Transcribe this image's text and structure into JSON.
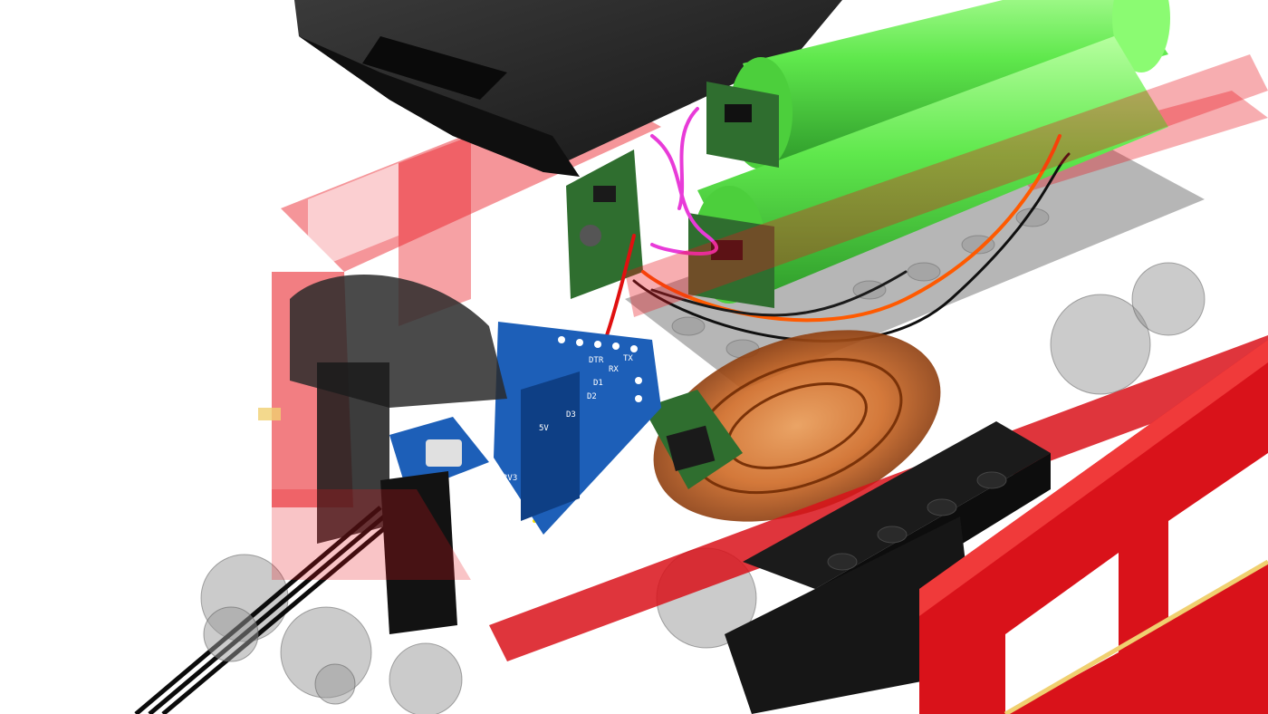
{
  "pcb_labels": [
    "DTR",
    "RX",
    "TX",
    "D1",
    "D2",
    "D3",
    "5V",
    "3V3"
  ],
  "colors": {
    "background": "#ffffff",
    "translucent_red": "#e8141c",
    "solid_red": "#d9121a",
    "battery_green": "#6af05a",
    "pcb_green": "#2f6e2f",
    "pcb_blue": "#1d5fb8",
    "copper_coil": "#c9611f",
    "black_brick": "#1b1b1b",
    "wire_orange": "#ff5a00",
    "wire_magenta": "#e83bd8",
    "wire_red": "#e01010",
    "wire_yellow": "#ffe600"
  },
  "objects": [
    "roof-panel",
    "battery-cells",
    "charger-boards",
    "wemos-d1-mini",
    "wireless-charging-coil",
    "usb-connector",
    "ribbon-cable",
    "red-chassis-frame",
    "red-side-wall",
    "wheels",
    "black-brick-beam"
  ]
}
